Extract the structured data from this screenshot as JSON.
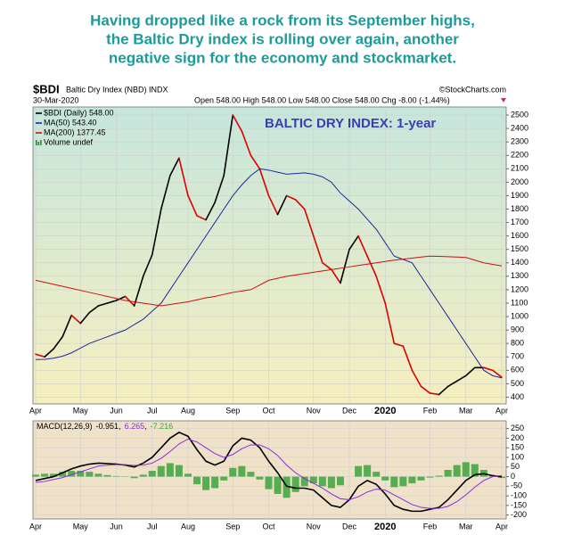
{
  "headline": [
    "Having dropped like a rock from its September highs,",
    "the Baltic Dry index is rolling over again, another",
    "negative sign for the economy and stockmarket."
  ],
  "chart_data": [
    {
      "type": "line",
      "symbol": "$BDI",
      "title": "Baltic Dry Index (NBD) INDX",
      "date": "30-Mar-2020",
      "quote": "Open 548.00 High 548.00 Low 548.00 Close 548.00 Chg -8.00 (-1.44%)",
      "source": "©StockCharts.com",
      "annotation": "BALTIC DRY INDEX: 1-year",
      "categories": [
        "Apr",
        null,
        null,
        null,
        null,
        "May",
        null,
        null,
        null,
        "Jun",
        null,
        null,
        null,
        "Jul",
        null,
        null,
        null,
        "Aug",
        null,
        null,
        null,
        null,
        "Sep",
        null,
        null,
        null,
        "Oct",
        null,
        null,
        null,
        null,
        "Nov",
        null,
        null,
        null,
        "Dec",
        null,
        null,
        null,
        "2020",
        null,
        null,
        null,
        null,
        "Feb",
        null,
        null,
        null,
        "Mar",
        null,
        null,
        null,
        "Apr"
      ],
      "series": [
        {
          "name": "$BDI (Daily) 548.00",
          "color": "#000000",
          "down_color": "#dd0000",
          "segmented": true,
          "values": [
            720,
            700,
            760,
            850,
            1010,
            950,
            1030,
            1080,
            1100,
            1120,
            1150,
            1080,
            1300,
            1460,
            1800,
            2050,
            2180,
            1900,
            1750,
            1720,
            1850,
            2050,
            2500,
            2380,
            2200,
            2100,
            1900,
            1760,
            1900,
            1870,
            1800,
            1600,
            1400,
            1350,
            1250,
            1500,
            1600,
            1450,
            1300,
            1100,
            800,
            780,
            600,
            480,
            430,
            420,
            480,
            520,
            560,
            620,
            620,
            600,
            548
          ]
        },
        {
          "name": "MA(50) 543.40",
          "color": "#1c2a9c",
          "values": [
            680,
            682,
            690,
            705,
            730,
            765,
            800,
            825,
            850,
            875,
            900,
            940,
            980,
            1040,
            1100,
            1200,
            1300,
            1400,
            1500,
            1600,
            1700,
            1800,
            1900,
            1980,
            2050,
            2100,
            2090,
            2075,
            2060,
            2065,
            2070,
            2060,
            2040,
            2000,
            1920,
            1860,
            1800,
            1725,
            1650,
            1550,
            1450,
            1425,
            1400,
            1300,
            1200,
            1100,
            1000,
            900,
            800,
            700,
            600,
            560,
            543
          ]
        },
        {
          "name": "MA(200) 1377.45",
          "color": "#cc1111",
          "values": [
            1270,
            1255,
            1240,
            1225,
            1210,
            1195,
            1180,
            1165,
            1150,
            1135,
            1120,
            1110,
            1100,
            1090,
            1080,
            1090,
            1100,
            1110,
            1125,
            1140,
            1150,
            1165,
            1180,
            1190,
            1200,
            1235,
            1270,
            1285,
            1300,
            1310,
            1320,
            1330,
            1340,
            1350,
            1360,
            1370,
            1380,
            1390,
            1400,
            1410,
            1420,
            1428,
            1435,
            1443,
            1450,
            1448,
            1446,
            1443,
            1440,
            1420,
            1400,
            1389,
            1377
          ]
        }
      ],
      "legend_extra": "Volume undef",
      "legend_extra_color": "#2e8b2e",
      "ylim": [
        350,
        2560
      ],
      "yticks": [
        400,
        500,
        600,
        700,
        800,
        900,
        1000,
        1100,
        1200,
        1300,
        1400,
        1500,
        1600,
        1700,
        1800,
        1900,
        2000,
        2100,
        2200,
        2300,
        2400,
        2500
      ],
      "grid": true
    },
    {
      "type": "line",
      "label": "MACD(12,26,9)",
      "categories": [
        "Apr",
        null,
        null,
        null,
        null,
        "May",
        null,
        null,
        null,
        "Jun",
        null,
        null,
        null,
        "Jul",
        null,
        null,
        null,
        "Aug",
        null,
        null,
        null,
        null,
        "Sep",
        null,
        null,
        null,
        "Oct",
        null,
        null,
        null,
        null,
        "Nov",
        null,
        null,
        null,
        "Dec",
        null,
        null,
        null,
        "2020",
        null,
        null,
        null,
        null,
        "Feb",
        null,
        null,
        null,
        "Mar",
        null,
        null,
        null,
        "Apr"
      ],
      "series": [
        {
          "style": "bars",
          "color": "#3aa53a",
          "legend_value": -7.216,
          "values": [
            10,
            15,
            15,
            25,
            30,
            30,
            25,
            15,
            8,
            3,
            -2,
            -8,
            10,
            30,
            55,
            70,
            60,
            15,
            -40,
            -70,
            -60,
            -20,
            45,
            55,
            25,
            -15,
            -65,
            -90,
            -110,
            -80,
            -50,
            -35,
            -50,
            -60,
            -45,
            0,
            55,
            60,
            25,
            -20,
            -55,
            -50,
            -35,
            -20,
            -5,
            5,
            35,
            60,
            75,
            65,
            35,
            5,
            -7
          ]
        },
        {
          "color": "#000000",
          "width": 1.6,
          "legend_value": -0.951,
          "values": [
            -20,
            -10,
            0,
            20,
            40,
            55,
            65,
            70,
            68,
            65,
            60,
            50,
            70,
            100,
            150,
            200,
            230,
            210,
            140,
            80,
            60,
            80,
            160,
            200,
            190,
            150,
            80,
            20,
            -50,
            -60,
            -60,
            -70,
            -110,
            -150,
            -160,
            -120,
            -50,
            -20,
            -40,
            -90,
            -150,
            -170,
            -180,
            -180,
            -170,
            -160,
            -120,
            -70,
            -20,
            10,
            15,
            5,
            -1
          ]
        },
        {
          "color": "#8a2be2",
          "width": 1,
          "legend_value": 6.265,
          "values": [
            -30,
            -25,
            -15,
            -5,
            10,
            25,
            40,
            55,
            60,
            62,
            62,
            58,
            60,
            70,
            95,
            130,
            170,
            195,
            180,
            150,
            120,
            100,
            115,
            145,
            165,
            165,
            145,
            110,
            60,
            20,
            -10,
            -35,
            -60,
            -90,
            -115,
            -120,
            -105,
            -80,
            -65,
            -70,
            -95,
            -120,
            -145,
            -160,
            -165,
            -165,
            -155,
            -130,
            -95,
            -55,
            -20,
            0,
            6
          ]
        }
      ],
      "ylim": [
        -220,
        290
      ],
      "yticks": [
        250,
        200,
        150,
        100,
        50,
        0,
        -50,
        -100,
        -150,
        -200
      ],
      "grid": true
    }
  ]
}
